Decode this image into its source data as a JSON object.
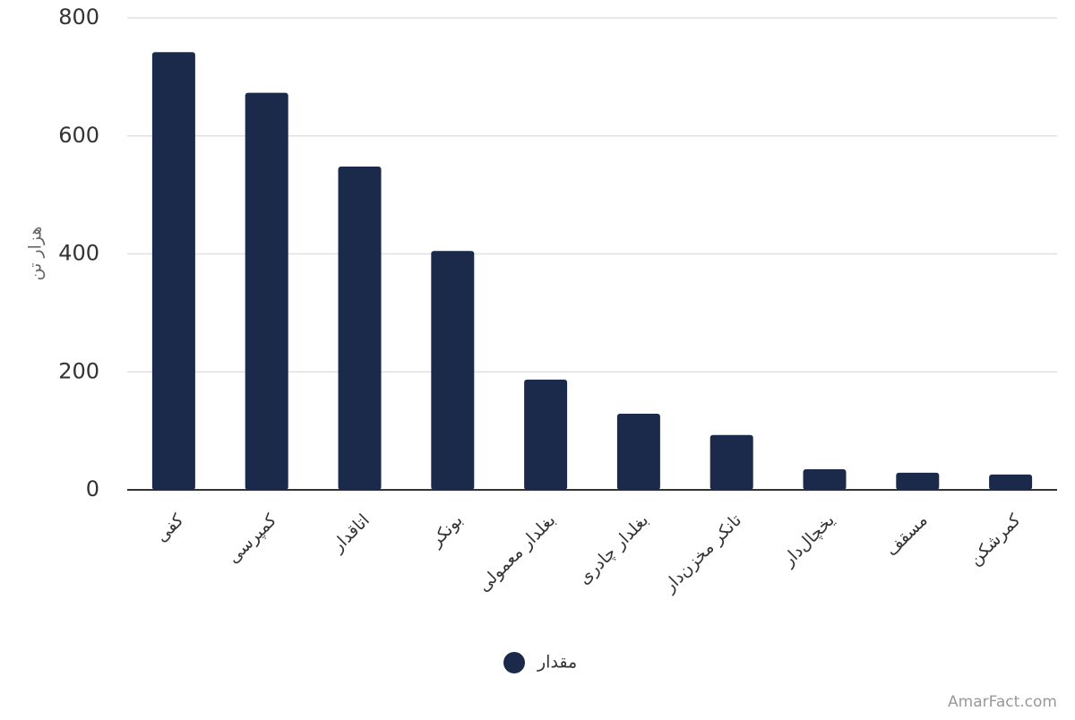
{
  "chart_data": {
    "type": "bar",
    "y_label": "هزار تن",
    "categories": [
      "کفی",
      "کمپرسی",
      "اتاقدار",
      "بونکر",
      "بغلدار معمولی",
      "بغلدار چادری",
      "تانکر مخزن‌دار",
      "یخچال‌دار",
      "مسقف",
      "کمرشکن"
    ],
    "series": [
      {
        "name": "مقدار",
        "color": "#1b2a4a",
        "values": [
          742,
          673,
          548,
          405,
          187,
          129,
          93,
          35,
          29,
          26
        ]
      }
    ],
    "ylim": [
      0,
      800
    ],
    "yticks": [
      0,
      200,
      400,
      600,
      800
    ],
    "grid": true,
    "legend": "bottom",
    "watermark": "AmarFact.com"
  }
}
